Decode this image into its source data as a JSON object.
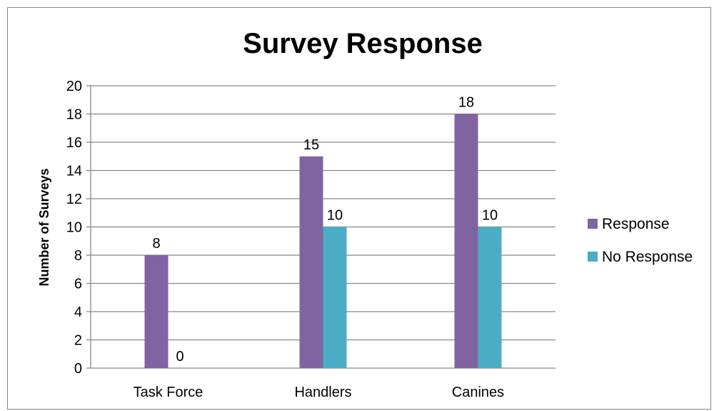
{
  "chart_data": {
    "type": "bar",
    "title": "Survey Response",
    "xlabel": "",
    "ylabel": "Number of Surveys",
    "ylim": [
      0,
      20
    ],
    "y_ticks": [
      0,
      2,
      4,
      6,
      8,
      10,
      12,
      14,
      16,
      18,
      20
    ],
    "grid": true,
    "legend_position": "right",
    "categories": [
      "Task Force",
      "Handlers",
      "Canines"
    ],
    "series": [
      {
        "name": "Response",
        "values": [
          8,
          15,
          18
        ],
        "color": "#8064a2"
      },
      {
        "name": "No Response",
        "values": [
          0,
          10,
          10
        ],
        "color": "#4bacc6"
      }
    ]
  }
}
